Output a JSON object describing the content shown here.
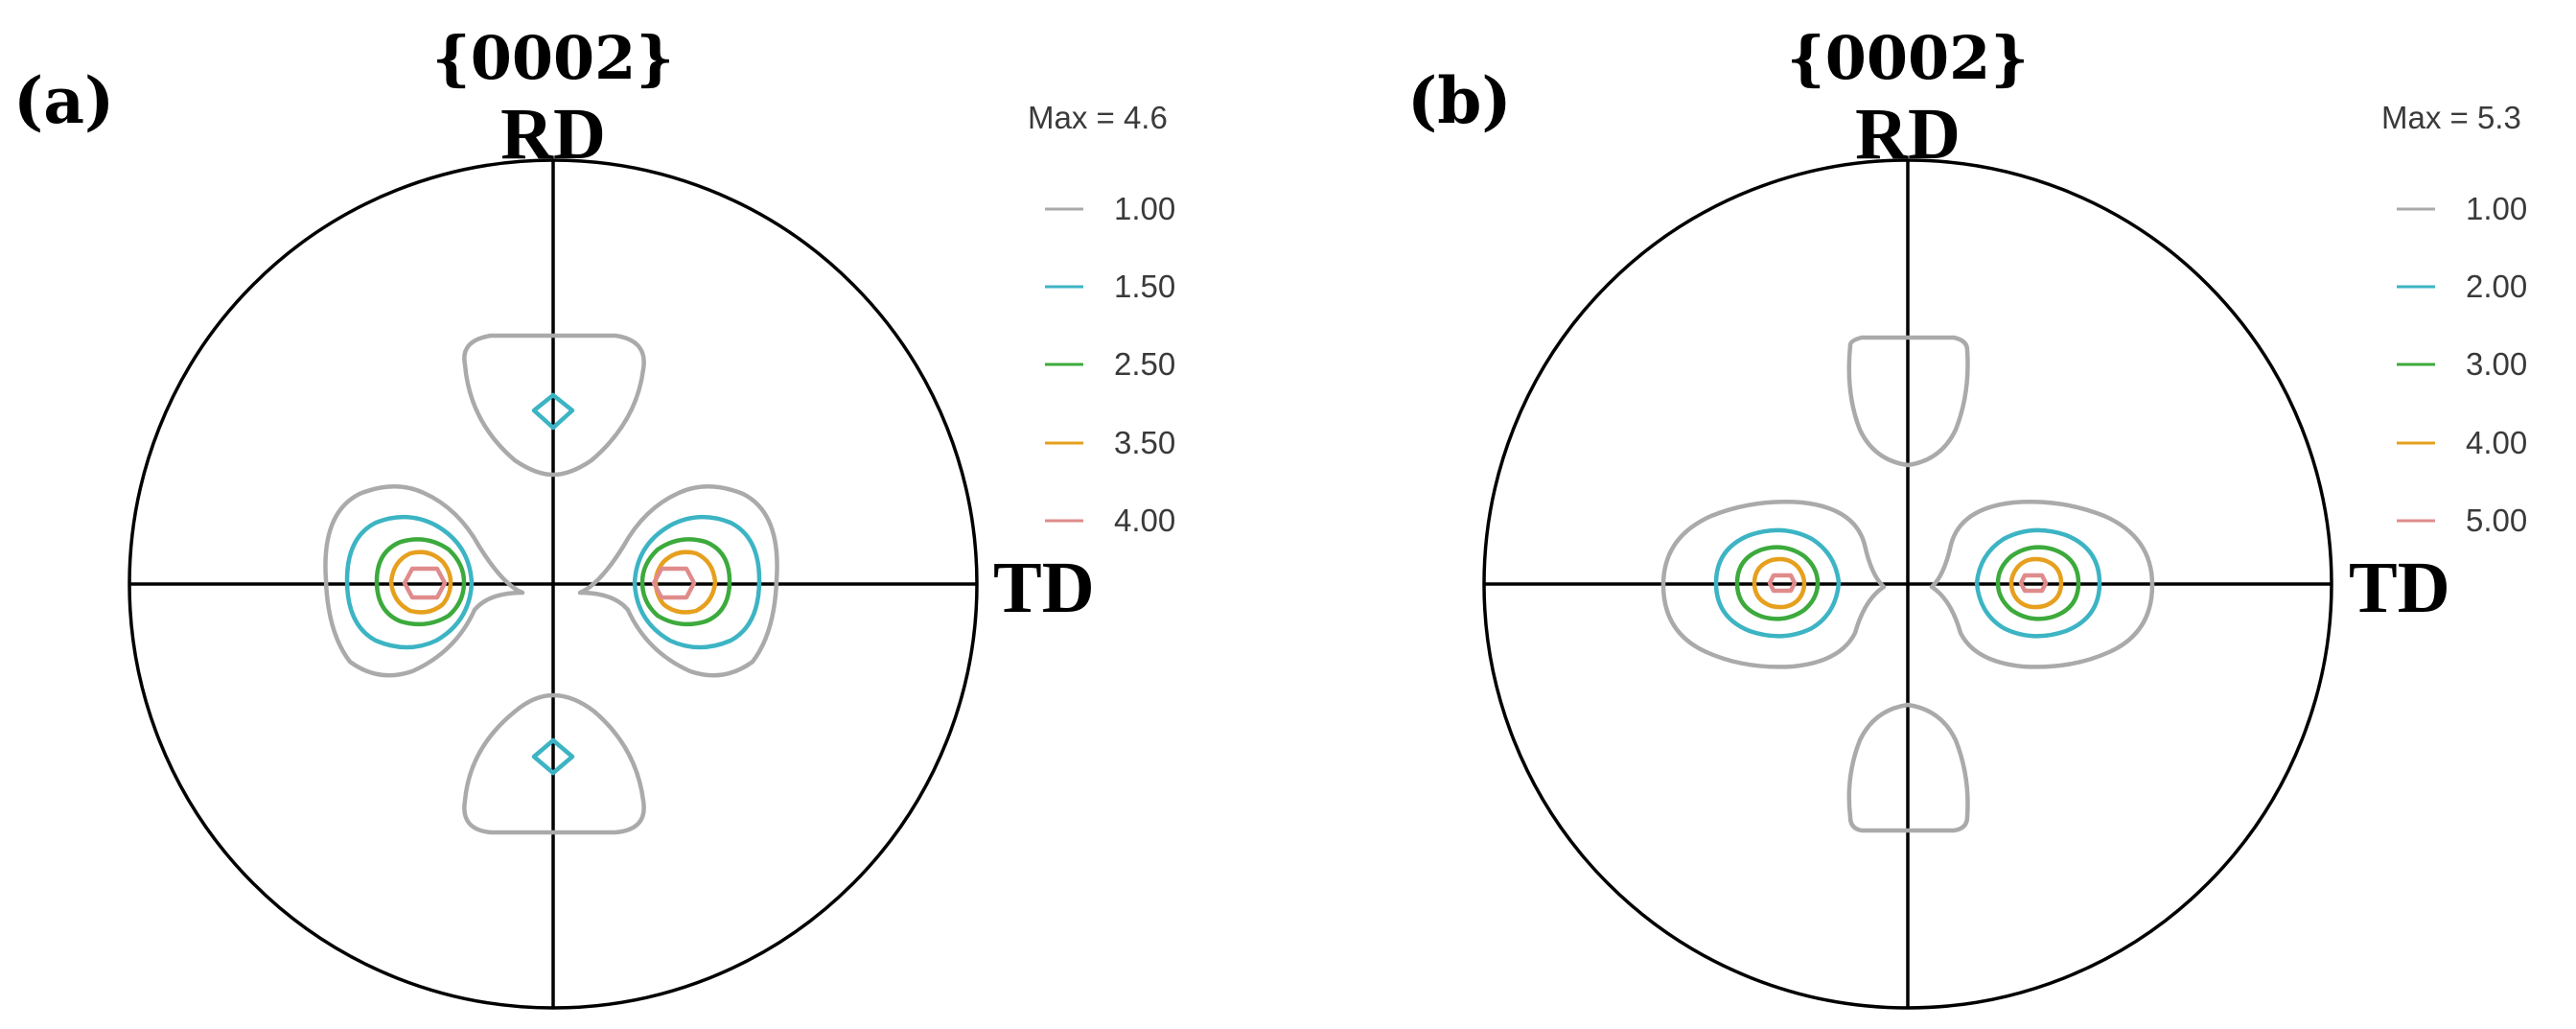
{
  "colors": {
    "level1": "#aaaaaa",
    "level2": "#3cb4c4",
    "level3": "#3caa3c",
    "level4": "#e6a01e",
    "level5": "#e08b8b"
  },
  "panels": [
    {
      "label": "(a)",
      "plane": "{0002}",
      "rd": "RD",
      "td": "TD",
      "max": "Max = 4.6",
      "legend": [
        "1.00",
        "1.50",
        "2.50",
        "3.50",
        "4.00"
      ]
    },
    {
      "label": "(b)",
      "plane": "{0002}",
      "rd": "RD",
      "td": "TD",
      "max": "Max = 5.3",
      "legend": [
        "1.00",
        "2.00",
        "3.00",
        "4.00",
        "5.00"
      ]
    }
  ]
}
